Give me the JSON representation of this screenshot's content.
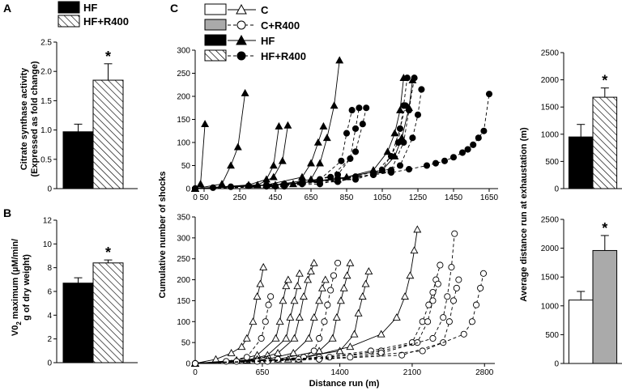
{
  "colors": {
    "hf": "#000000",
    "hfr": "#ffffff",
    "c": "#ffffff",
    "cr": "#aaaaaa",
    "hatch": "#000000"
  },
  "chart_data": [
    {
      "id": "A",
      "type": "bar",
      "panel_label": "A",
      "categories": [
        "HF",
        "HF+R400"
      ],
      "values": [
        0.97,
        1.85
      ],
      "errors": [
        0.13,
        0.28
      ],
      "ylim": [
        0,
        2.5
      ],
      "yticks": [
        "0",
        "0.5",
        "1.0",
        "1.5",
        "2.0",
        "2.5"
      ],
      "ylabel": [
        "Citrate synthase activity",
        "(Expressed as fold change)"
      ],
      "legend": [
        {
          "label": "HF",
          "fill": "black"
        },
        {
          "label": "HF+R400",
          "fill": "hatch"
        }
      ],
      "significance": "*"
    },
    {
      "id": "B",
      "type": "bar",
      "panel_label": "B",
      "categories": [
        "HF",
        "HF+R400"
      ],
      "values": [
        6.7,
        8.4
      ],
      "errors": [
        0.45,
        0.25
      ],
      "ylim": [
        0,
        12
      ],
      "yticks": [
        "0",
        "2",
        "4",
        "6",
        "8",
        "10",
        "12"
      ],
      "ylabel": [
        "V0",
        "2",
        " maximum (µM/min/",
        "g of dry weight)"
      ],
      "significance": "*"
    },
    {
      "id": "C-top",
      "type": "line",
      "panel_label": "C",
      "xlim": [
        0,
        1700
      ],
      "ylim": [
        0,
        300
      ],
      "xticks": [
        0,
        50,
        250,
        450,
        650,
        850,
        1050,
        1250,
        1450,
        1650
      ],
      "xtick_labels": [
        "0",
        "50",
        "250",
        "450",
        "650",
        "850",
        "1050",
        "1250",
        "1450",
        "1650"
      ],
      "yticks": [
        "0",
        "50",
        "100",
        "150",
        "200",
        "250",
        "300"
      ],
      "legend": [
        {
          "label": "C",
          "fill": "white",
          "marker": "triangle-open",
          "dash": false
        },
        {
          "label": "C+R400",
          "fill": "grey",
          "marker": "circle-open",
          "dash": true
        },
        {
          "label": "HF",
          "fill": "black",
          "marker": "triangle-filled",
          "dash": false
        },
        {
          "label": "HF+R400",
          "fill": "hatch",
          "marker": "circle-filled",
          "dash": true
        }
      ],
      "series": [
        {
          "group": "HF",
          "marker": "triangle-filled",
          "dash": false,
          "x": [
            0,
            30,
            55
          ],
          "y": [
            0,
            10,
            140
          ]
        },
        {
          "group": "HF",
          "marker": "triangle-filled",
          "dash": false,
          "x": [
            0,
            150,
            200,
            240,
            280
          ],
          "y": [
            0,
            10,
            50,
            90,
            207
          ]
        },
        {
          "group": "HF",
          "marker": "triangle-filled",
          "dash": false,
          "x": [
            0,
            300,
            400,
            440,
            470
          ],
          "y": [
            0,
            8,
            20,
            50,
            135
          ]
        },
        {
          "group": "HF",
          "marker": "triangle-filled",
          "dash": false,
          "x": [
            0,
            350,
            440,
            490,
            520
          ],
          "y": [
            0,
            8,
            25,
            60,
            137
          ]
        },
        {
          "group": "HF",
          "marker": "triangle-filled",
          "dash": false,
          "x": [
            0,
            400,
            600,
            650,
            690,
            720
          ],
          "y": [
            0,
            8,
            25,
            55,
            100,
            135
          ]
        },
        {
          "group": "HF",
          "marker": "triangle-filled",
          "dash": false,
          "x": [
            0,
            450,
            650,
            700,
            740,
            780,
            810
          ],
          "y": [
            0,
            8,
            20,
            55,
            110,
            180,
            278
          ]
        },
        {
          "group": "HF",
          "marker": "triangle-filled",
          "dash": false,
          "x": [
            0,
            500,
            800,
            1000,
            1080,
            1120,
            1150,
            1170
          ],
          "y": [
            0,
            10,
            20,
            40,
            80,
            120,
            170,
            240
          ]
        },
        {
          "group": "HF",
          "marker": "triangle-filled",
          "dash": false,
          "x": [
            0,
            550,
            850,
            1050,
            1120,
            1160,
            1200,
            1220
          ],
          "y": [
            0,
            10,
            25,
            40,
            70,
            110,
            175,
            235
          ]
        },
        {
          "group": "HF+R400",
          "marker": "circle-filled",
          "dash": true,
          "x": [
            0,
            400,
            700,
            820,
            850,
            880
          ],
          "y": [
            0,
            5,
            20,
            60,
            120,
            170
          ]
        },
        {
          "group": "HF+R400",
          "marker": "circle-filled",
          "dash": true,
          "x": [
            0,
            450,
            760,
            870,
            900,
            920
          ],
          "y": [
            0,
            5,
            25,
            65,
            130,
            175
          ]
        },
        {
          "group": "HF+R400",
          "marker": "circle-filled",
          "dash": true,
          "x": [
            0,
            500,
            800,
            900,
            940,
            960
          ],
          "y": [
            0,
            5,
            30,
            80,
            140,
            175
          ]
        },
        {
          "group": "HF+R400",
          "marker": "circle-filled",
          "dash": true,
          "x": [
            0,
            600,
            1000,
            1100,
            1150,
            1180
          ],
          "y": [
            0,
            10,
            30,
            70,
            130,
            180
          ]
        },
        {
          "group": "HF+R400",
          "marker": "circle-filled",
          "dash": true,
          "x": [
            0,
            700,
            1050,
            1140,
            1170,
            1190
          ],
          "y": [
            0,
            10,
            40,
            100,
            180,
            240
          ]
        },
        {
          "group": "HF+R400",
          "marker": "circle-filled",
          "dash": true,
          "x": [
            0,
            800,
            1100,
            1170,
            1200,
            1230
          ],
          "y": [
            0,
            15,
            40,
            100,
            170,
            240
          ]
        },
        {
          "group": "HF+R400",
          "marker": "circle-filled",
          "dash": true,
          "x": [
            0,
            900,
            1150,
            1220,
            1250,
            1270
          ],
          "y": [
            0,
            20,
            50,
            110,
            160,
            215
          ]
        },
        {
          "group": "HF+R400",
          "marker": "circle-filled",
          "dash": true,
          "x": [
            0,
            100,
            200,
            300,
            400,
            500,
            600,
            700,
            800,
            900,
            1000,
            1100,
            1200,
            1300,
            1350,
            1400,
            1450,
            1500,
            1530,
            1560,
            1590,
            1620,
            1650
          ],
          "y": [
            0,
            2,
            4,
            6,
            8,
            10,
            14,
            18,
            22,
            26,
            30,
            35,
            42,
            50,
            55,
            60,
            68,
            78,
            85,
            95,
            110,
            125,
            205
          ]
        }
      ]
    },
    {
      "id": "C-bottom",
      "type": "line",
      "xlim": [
        0,
        2900
      ],
      "ylim": [
        0,
        350
      ],
      "xticks": [
        0,
        650,
        1400,
        2100,
        2800
      ],
      "xtick_labels": [
        "0",
        "650",
        "1400",
        "2100",
        "2800"
      ],
      "yticks": [
        "0",
        "50",
        "100",
        "150",
        "200",
        "250",
        "300",
        "350"
      ],
      "xlabel": "Distance run (m)",
      "ylabel": "Cumulative number of shocks",
      "series": [
        {
          "group": "C",
          "marker": "triangle-open",
          "dash": false,
          "x": [
            0,
            200,
            350,
            450,
            500,
            560,
            600,
            630,
            660
          ],
          "y": [
            0,
            10,
            25,
            40,
            60,
            100,
            160,
            190,
            230
          ]
        },
        {
          "group": "C",
          "marker": "triangle-open",
          "dash": false,
          "x": [
            0,
            400,
            600,
            780,
            820,
            850,
            880,
            900
          ],
          "y": [
            0,
            8,
            20,
            60,
            100,
            150,
            185,
            200
          ]
        },
        {
          "group": "C",
          "marker": "triangle-open",
          "dash": false,
          "x": [
            0,
            500,
            700,
            880,
            920,
            960,
            990,
            1010
          ],
          "y": [
            0,
            8,
            20,
            60,
            110,
            150,
            185,
            215
          ]
        },
        {
          "group": "C",
          "marker": "triangle-open",
          "dash": false,
          "x": [
            0,
            600,
            800,
            960,
            1010,
            1050,
            1090,
            1120,
            1150
          ],
          "y": [
            0,
            10,
            25,
            60,
            110,
            160,
            200,
            220,
            240
          ]
        },
        {
          "group": "C",
          "marker": "triangle-open",
          "dash": false,
          "x": [
            0,
            700,
            950,
            1100,
            1150,
            1200,
            1230,
            1260
          ],
          "y": [
            0,
            10,
            25,
            60,
            110,
            150,
            180,
            200
          ]
        },
        {
          "group": "C",
          "marker": "triangle-open",
          "dash": false,
          "x": [
            0,
            800,
            1200,
            1330,
            1370,
            1410,
            1440,
            1470,
            1500
          ],
          "y": [
            0,
            10,
            30,
            60,
            110,
            150,
            180,
            210,
            240
          ]
        },
        {
          "group": "C",
          "marker": "triangle-open",
          "dash": false,
          "x": [
            0,
            900,
            1400,
            1540,
            1580,
            1620,
            1650,
            1680
          ],
          "y": [
            0,
            10,
            30,
            70,
            120,
            160,
            190,
            220
          ]
        },
        {
          "group": "C",
          "marker": "triangle-open",
          "dash": false,
          "x": [
            0,
            1000,
            1500,
            1800,
            1950,
            2030,
            2080,
            2120,
            2150
          ],
          "y": [
            0,
            10,
            40,
            70,
            110,
            160,
            210,
            270,
            320
          ]
        },
        {
          "group": "C+R400",
          "marker": "circle-open",
          "dash": true,
          "x": [
            0,
            300,
            500,
            640,
            680,
            710,
            730
          ],
          "y": [
            0,
            5,
            15,
            60,
            100,
            140,
            160
          ]
        },
        {
          "group": "C+R400",
          "marker": "circle-open",
          "dash": true,
          "x": [
            0,
            400,
            800,
            1050,
            1150,
            1200,
            1250,
            1280,
            1310,
            1340,
            1380
          ],
          "y": [
            0,
            5,
            10,
            15,
            30,
            60,
            100,
            140,
            175,
            210,
            240
          ]
        },
        {
          "group": "C+R400",
          "marker": "circle-open",
          "dash": true,
          "x": [
            0,
            600,
            1200,
            1700,
            2100,
            2200,
            2260,
            2300,
            2330,
            2370
          ],
          "y": [
            0,
            5,
            15,
            30,
            50,
            100,
            140,
            170,
            200,
            235
          ]
        },
        {
          "group": "C+R400",
          "marker": "circle-open",
          "dash": true,
          "x": [
            0,
            700,
            1300,
            1800,
            2150,
            2250,
            2300,
            2350
          ],
          "y": [
            0,
            5,
            15,
            30,
            50,
            100,
            150,
            190
          ]
        },
        {
          "group": "C+R400",
          "marker": "circle-open",
          "dash": true,
          "x": [
            0,
            1000,
            1800,
            2300,
            2400,
            2440,
            2480,
            2510
          ],
          "y": [
            0,
            10,
            25,
            60,
            110,
            160,
            230,
            310
          ]
        },
        {
          "group": "C+R400",
          "marker": "circle-open",
          "dash": true,
          "x": [
            0,
            1200,
            2000,
            2400,
            2460,
            2500,
            2530,
            2550
          ],
          "y": [
            0,
            10,
            20,
            50,
            100,
            150,
            180,
            200
          ]
        },
        {
          "group": "C+R400",
          "marker": "circle-open",
          "dash": true,
          "x": [
            0,
            1500,
            2200,
            2600,
            2680,
            2720,
            2760,
            2790
          ],
          "y": [
            0,
            15,
            30,
            70,
            100,
            140,
            180,
            215
          ]
        }
      ]
    },
    {
      "id": "D-top",
      "type": "bar",
      "categories": [
        "HF",
        "HF+R400"
      ],
      "values": [
        950,
        1680
      ],
      "errors": [
        230,
        170
      ],
      "ylim": [
        0,
        2500
      ],
      "yticks": [
        "0",
        "500",
        "1000",
        "1500",
        "2000",
        "2500"
      ],
      "significance": "*"
    },
    {
      "id": "D-bottom",
      "type": "bar",
      "categories": [
        "C",
        "C+R400"
      ],
      "values": [
        1100,
        1960
      ],
      "errors": [
        150,
        260
      ],
      "ylim": [
        0,
        2500
      ],
      "yticks": [
        "0",
        "500",
        "1000",
        "1500",
        "2000",
        "2500"
      ],
      "significance": "*"
    }
  ],
  "shared": {
    "d_ylabel": "Average distance run at exhaustation (m)"
  }
}
